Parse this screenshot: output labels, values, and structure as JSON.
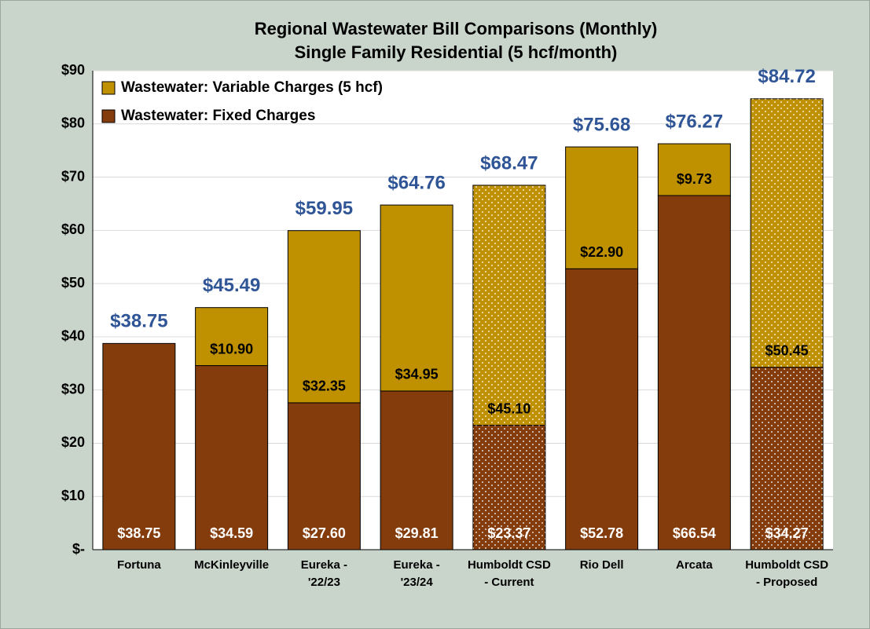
{
  "chart_data": {
    "type": "stacked_bar",
    "title": "Regional Wastewater Bill Comparisons (Monthly)",
    "subtitle": "Single Family Residential (5 hcf/month)",
    "categories": [
      [
        "Fortuna"
      ],
      [
        "McKinleyville"
      ],
      [
        "Eureka -",
        "'22/23"
      ],
      [
        "Eureka -",
        "'23/24"
      ],
      [
        "Humboldt CSD",
        "- Current"
      ],
      [
        "Rio Dell"
      ],
      [
        "Arcata"
      ],
      [
        "Humboldt CSD",
        "- Proposed"
      ]
    ],
    "series": [
      {
        "name": "Wastewater: Fixed Charges",
        "color": "#843c0c",
        "values": [
          38.75,
          34.59,
          27.6,
          29.81,
          23.37,
          52.78,
          66.54,
          34.27
        ],
        "value_labels": [
          "$38.75",
          "$34.59",
          "$27.60",
          "$29.81",
          "$23.37",
          "$52.78",
          "$66.54",
          "$34.27"
        ]
      },
      {
        "name": "Wastewater: Variable Charges (5 hcf)",
        "color": "#bf9000",
        "values": [
          null,
          10.9,
          32.35,
          34.95,
          45.1,
          22.9,
          9.73,
          50.45
        ],
        "value_labels": [
          null,
          "$10.90",
          "$32.35",
          "$34.95",
          "$45.10",
          "$22.90",
          "$9.73",
          "$50.45"
        ]
      }
    ],
    "totals": [
      38.75,
      45.49,
      59.95,
      64.76,
      68.47,
      75.68,
      76.27,
      84.72
    ],
    "total_labels": [
      "$38.75",
      "$45.49",
      "$59.95",
      "$64.76",
      "$68.47",
      "$75.68",
      "$76.27",
      "$84.72"
    ],
    "dotted": [
      false,
      false,
      false,
      false,
      true,
      false,
      false,
      true
    ],
    "ylim": [
      0,
      90
    ],
    "yticks": [
      {
        "value": 0,
        "label": "$-"
      },
      {
        "value": 10,
        "label": "$10"
      },
      {
        "value": 20,
        "label": "$20"
      },
      {
        "value": 30,
        "label": "$30"
      },
      {
        "value": 40,
        "label": "$40"
      },
      {
        "value": 50,
        "label": "$50"
      },
      {
        "value": 60,
        "label": "$60"
      },
      {
        "value": 70,
        "label": "$70"
      },
      {
        "value": 80,
        "label": "$80"
      },
      {
        "value": 90,
        "label": "$90"
      }
    ],
    "grid": true,
    "legend": "top-left"
  }
}
